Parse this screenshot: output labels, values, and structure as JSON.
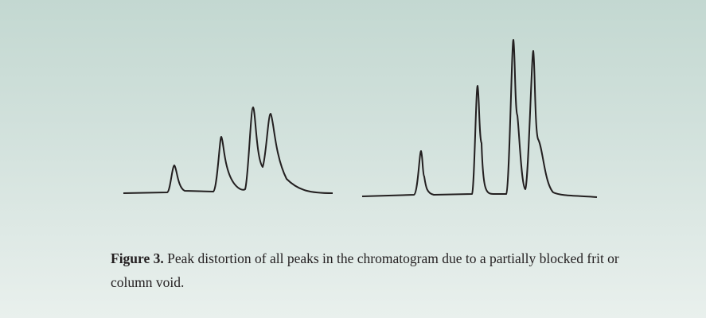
{
  "figure": {
    "label": "Figure 3.",
    "caption": "Peak distortion of all peaks in the chromatogram due to a partially blocked frit or column void."
  }
}
